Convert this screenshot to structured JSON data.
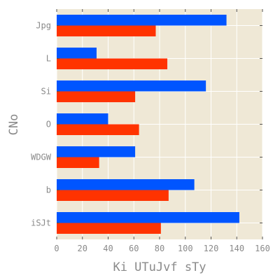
{
  "chart_data": {
    "type": "bar",
    "orientation": "horizontal",
    "categories": [
      "Jpg",
      "L",
      "Si",
      "O",
      "WDGW",
      "b",
      "iSJt"
    ],
    "series": [
      {
        "color": "#0055ff",
        "values": [
          132,
          31,
          116,
          40,
          61,
          107,
          142
        ]
      },
      {
        "color": "#ff3300",
        "values": [
          77,
          86,
          61,
          64,
          33,
          87,
          81
        ]
      }
    ],
    "xlabel": "Ki UTuJvf sTy",
    "ylabel": "CNo",
    "xlim": [
      0,
      160
    ],
    "xticks": [
      0,
      20,
      40,
      60,
      80,
      100,
      120,
      140,
      160
    ],
    "grid": true,
    "background": "#efe8d6",
    "legend": "none"
  }
}
